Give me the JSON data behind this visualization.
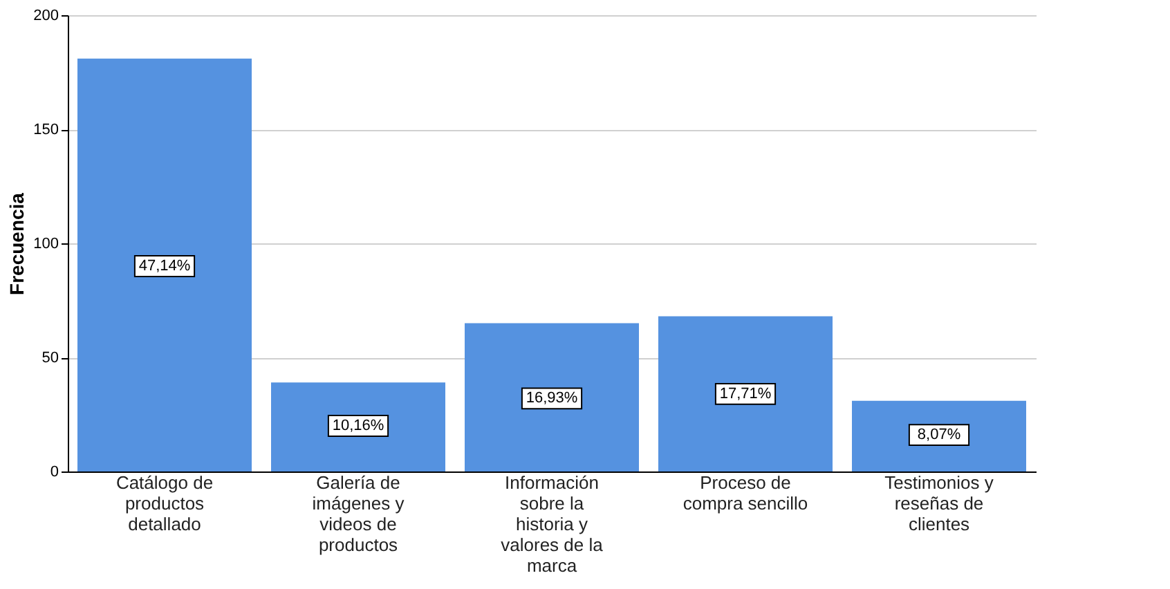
{
  "chart_data": {
    "type": "bar",
    "ylabel": "Frecuencia",
    "categories": [
      "Catálogo de productos detallado",
      "Galería de imágenes y videos de productos",
      "Información sobre la historia y valores de la marca",
      "Proceso de compra sencillo",
      "Testimonios y reseñas de clientes"
    ],
    "values": [
      181,
      39,
      65,
      68,
      31
    ],
    "annotations": [
      {
        "text": "47,14%",
        "x": "Catálogo de productos detallado",
        "y": 90
      },
      {
        "text": "10,16%",
        "x": "Galería de imágenes y videos de productos",
        "y": 20
      },
      {
        "text": "16,93%",
        "x": "Información sobre la historia y valores de la marca",
        "y": 32
      },
      {
        "text": "17,71%",
        "x": "Proceso de compra sencillo",
        "y": 34
      },
      {
        "text": "8,07%",
        "x": "Testimonios y reseñas de clientes",
        "y": 16
      }
    ],
    "color": "#5592e0",
    "ylim": [
      0,
      200
    ],
    "yticks": [
      0,
      50,
      100,
      150,
      200
    ],
    "grid": "y",
    "legend": false
  }
}
